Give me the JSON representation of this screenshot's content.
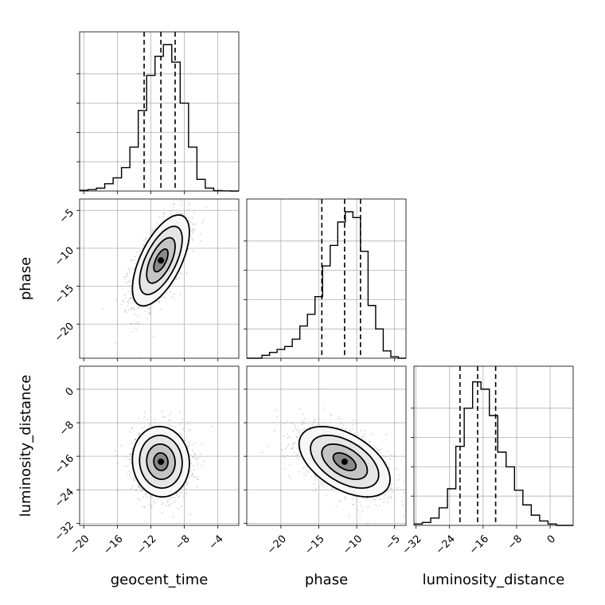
{
  "chart_data": {
    "type": "corner",
    "parameters": [
      "geocent_time",
      "phase",
      "luminosity_distance"
    ],
    "axes": {
      "geocent_time": {
        "label": "geocent_time",
        "range": [
          -20.5,
          -1.5
        ],
        "ticks": [
          -20,
          -16,
          -12,
          -8,
          -4
        ],
        "tick_labels": [
          "−20",
          "−16",
          "−12",
          "−8",
          "−4"
        ],
        "quantiles": [
          -12.8,
          -10.8,
          -9.1
        ]
      },
      "phase": {
        "label": "phase",
        "range": [
          -24.5,
          -3.5
        ],
        "ticks": [
          -20,
          -15,
          -10,
          -5
        ],
        "tick_labels": [
          "−20",
          "−15",
          "−10",
          "−5"
        ],
        "quantiles": [
          -14.6,
          -11.6,
          -9.5
        ]
      },
      "luminosity_distance": {
        "label": "luminosity_distance",
        "range": [
          -32.5,
          5.5
        ],
        "ticks": [
          -32,
          -24,
          -16,
          -8,
          0
        ],
        "tick_labels": [
          "−32",
          "−24",
          "−16",
          "−8",
          "0"
        ],
        "quantiles": [
          -21.5,
          -17.3,
          -13.0
        ]
      }
    },
    "histograms": {
      "geocent_time": {
        "edges": [
          -20.5,
          -19.5,
          -18.5,
          -17.5,
          -16.5,
          -15.5,
          -14.5,
          -13.5,
          -12.5,
          -11.5,
          -10.5,
          -9.5,
          -8.5,
          -7.5,
          -6.5,
          -5.5,
          -4.5,
          -3.5,
          -2.5,
          -1.5
        ],
        "counts": [
          0.005,
          0.01,
          0.02,
          0.05,
          0.09,
          0.16,
          0.3,
          0.55,
          0.79,
          0.92,
          1.0,
          0.88,
          0.6,
          0.3,
          0.08,
          0.02,
          0.003,
          0.001,
          0.0
        ]
      },
      "phase": {
        "edges": [
          -24.5,
          -23.5,
          -22.5,
          -21.5,
          -20.5,
          -19.5,
          -18.5,
          -17.5,
          -16.5,
          -15.5,
          -14.5,
          -13.5,
          -12.5,
          -11.5,
          -10.5,
          -9.5,
          -8.5,
          -7.5,
          -6.5,
          -5.5,
          -4.5,
          -3.5
        ],
        "counts": [
          0.0,
          0.0,
          0.02,
          0.04,
          0.06,
          0.08,
          0.13,
          0.22,
          0.3,
          0.42,
          0.63,
          0.77,
          0.93,
          1.0,
          0.96,
          0.73,
          0.36,
          0.2,
          0.05,
          0.01,
          0.0
        ]
      },
      "luminosity_distance": {
        "edges": [
          -32.5,
          -30.5,
          -28.5,
          -26.5,
          -24.5,
          -22.5,
          -20.5,
          -18.5,
          -16.5,
          -14.5,
          -12.5,
          -10.5,
          -8.5,
          -6.5,
          -4.5,
          -2.5,
          -0.5,
          1.5,
          3.5,
          5.5
        ],
        "counts": [
          0.01,
          0.02,
          0.05,
          0.12,
          0.25,
          0.54,
          0.8,
          0.98,
          0.93,
          0.75,
          0.5,
          0.4,
          0.24,
          0.14,
          0.07,
          0.03,
          0.01,
          0.0,
          0.0
        ]
      }
    },
    "pairs": [
      {
        "x": "geocent_time",
        "y": "phase",
        "center": [
          -10.8,
          -11.6
        ],
        "spread": [
          1.7,
          3.0
        ],
        "correlation": 0.62,
        "contour_levels_sigma": [
          0.5,
          1.0,
          1.5,
          2.0
        ]
      },
      {
        "x": "geocent_time",
        "y": "luminosity_distance",
        "center": [
          -10.8,
          -17.3
        ],
        "spread": [
          1.7,
          4.2
        ],
        "correlation": -0.05,
        "contour_levels_sigma": [
          0.5,
          1.0,
          1.5,
          2.0
        ]
      },
      {
        "x": "phase",
        "y": "luminosity_distance",
        "center": [
          -11.6,
          -17.3
        ],
        "spread": [
          3.0,
          4.2
        ],
        "correlation": -0.5,
        "contour_levels_sigma": [
          0.5,
          1.0,
          1.5,
          2.0
        ]
      }
    ],
    "grid": true
  }
}
